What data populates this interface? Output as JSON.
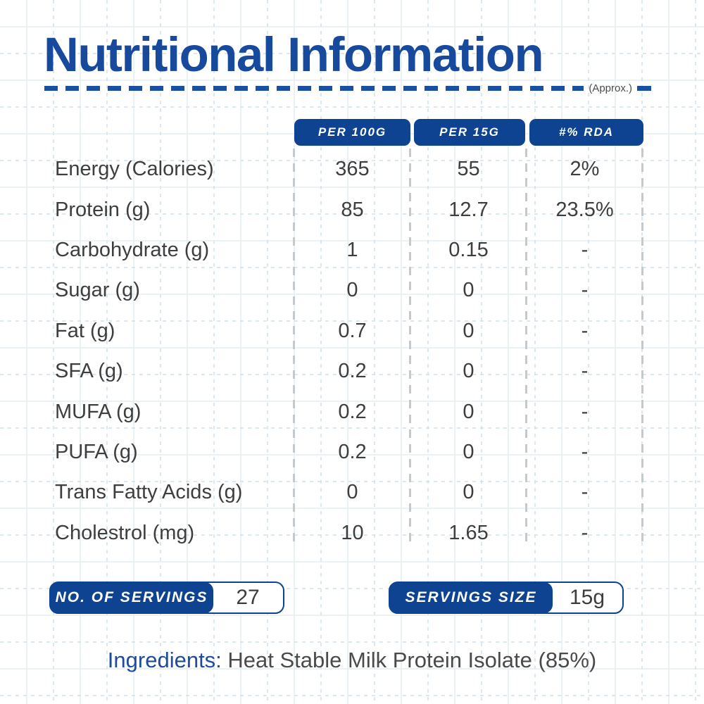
{
  "page": {
    "title": "Nutritional Information",
    "approx_label": "(Approx.)"
  },
  "table": {
    "columns": [
      "PER 100G",
      "PER 15G",
      "#% RDA"
    ],
    "rows": [
      {
        "label": "Energy (Calories)",
        "per100g": "365",
        "per15g": "55",
        "rda": "2%"
      },
      {
        "label": "Protein (g)",
        "per100g": "85",
        "per15g": "12.7",
        "rda": "23.5%"
      },
      {
        "label": "Carbohydrate (g)",
        "per100g": "1",
        "per15g": "0.15",
        "rda": "-"
      },
      {
        "label": "Sugar (g)",
        "per100g": "0",
        "per15g": "0",
        "rda": "-"
      },
      {
        "label": "Fat (g)",
        "per100g": "0.7",
        "per15g": "0",
        "rda": "-"
      },
      {
        "label": "SFA (g)",
        "per100g": "0.2",
        "per15g": "0",
        "rda": "-"
      },
      {
        "label": "MUFA (g)",
        "per100g": "0.2",
        "per15g": "0",
        "rda": "-"
      },
      {
        "label": "PUFA (g)",
        "per100g": "0.2",
        "per15g": "0",
        "rda": "-"
      },
      {
        "label": "Trans Fatty Acids (g)",
        "per100g": "0",
        "per15g": "0",
        "rda": "-"
      },
      {
        "label": "Cholestrol (mg)",
        "per100g": "10",
        "per15g": "1.65",
        "rda": "-"
      }
    ]
  },
  "servings": {
    "count_label": "NO. OF SERVINGS",
    "count_value": "27",
    "size_label": "SERVINGS SIZE",
    "size_value": "15g"
  },
  "ingredients": {
    "label": "Ingredients:",
    "value": " Heat Stable Milk Protein Isolate (85%)"
  },
  "colors": {
    "brand_blue": "#0e4391",
    "title_blue": "#17499c",
    "text_dark": "#3e3e3e",
    "separator_gray": "#c6c9cb",
    "grid_solid": "#e3edf2",
    "grid_dashed": "#cfe0ea"
  }
}
